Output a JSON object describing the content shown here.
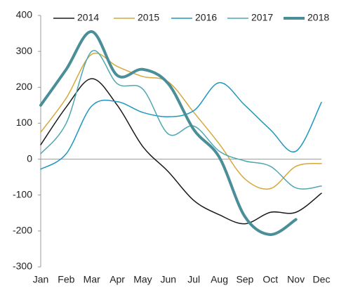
{
  "chart_data": {
    "type": "line",
    "categories": [
      "Jan",
      "Feb",
      "Mar",
      "Apr",
      "May",
      "Jun",
      "Jul",
      "Aug",
      "Sep",
      "Oct",
      "Nov",
      "Dec"
    ],
    "series": [
      {
        "name": "2014",
        "color": "#1a1a1a",
        "width": 1.5,
        "values": [
          40,
          145,
          224,
          150,
          35,
          -35,
          -115,
          -155,
          -180,
          -148,
          -148,
          -95
        ]
      },
      {
        "name": "2015",
        "color": "#d4a93a",
        "width": 1.5,
        "values": [
          75,
          170,
          292,
          258,
          230,
          215,
          130,
          42,
          -55,
          -82,
          -20,
          -12
        ]
      },
      {
        "name": "2016",
        "color": "#1f97c0",
        "width": 1.5,
        "values": [
          -28,
          15,
          148,
          160,
          130,
          118,
          135,
          213,
          150,
          82,
          22,
          158
        ]
      },
      {
        "name": "2017",
        "color": "#4fa7b0",
        "width": 1.5,
        "values": [
          15,
          100,
          300,
          210,
          195,
          70,
          92,
          22,
          -5,
          -20,
          -80,
          -75
        ]
      },
      {
        "name": "2018",
        "color": "#4a8e97",
        "width": 4,
        "values": [
          150,
          250,
          355,
          233,
          250,
          210,
          82,
          5,
          -160,
          -210,
          -168,
          null
        ]
      }
    ],
    "ylim": [
      -300,
      400
    ],
    "yticks": [
      -300,
      -200,
      -100,
      0,
      100,
      200,
      300,
      400
    ],
    "grid": false,
    "legend": "top"
  }
}
